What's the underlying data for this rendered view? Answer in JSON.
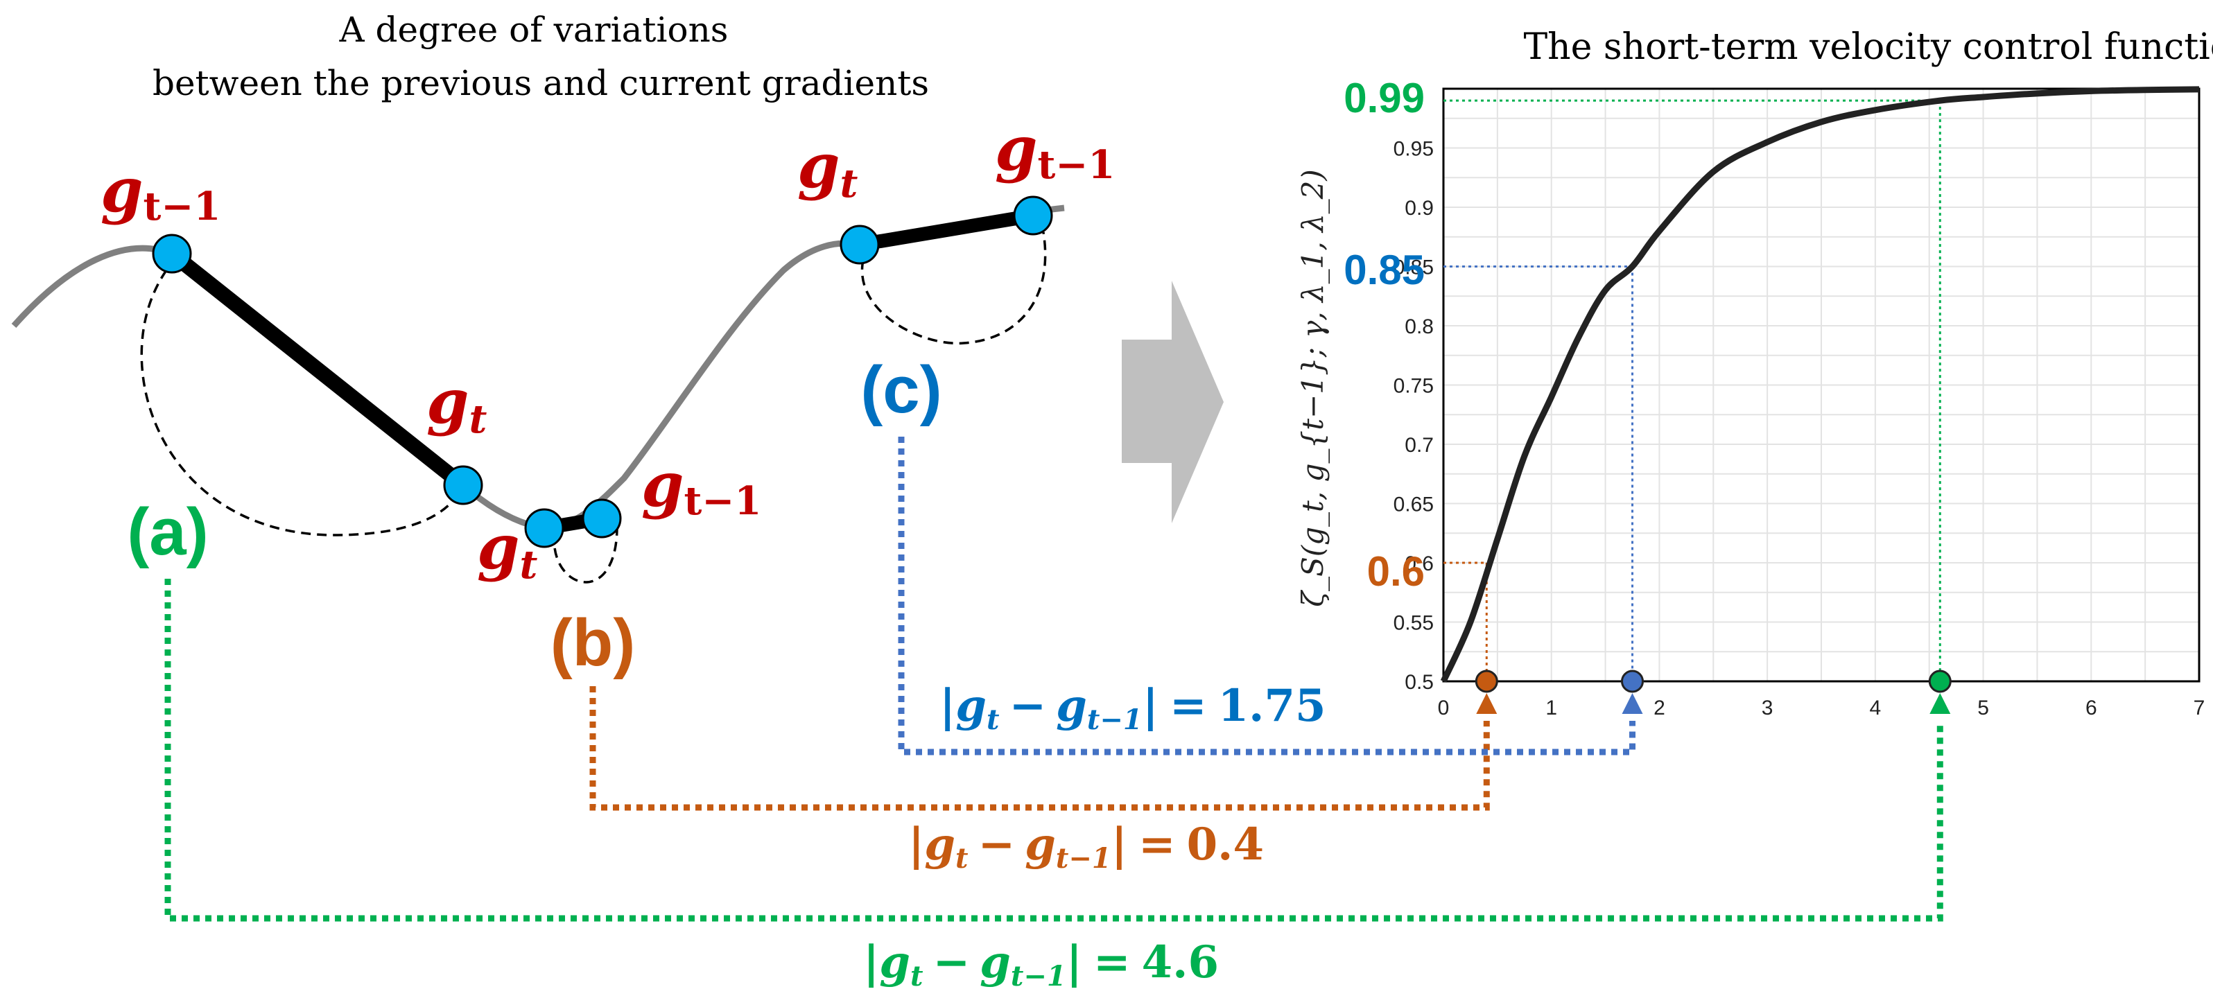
{
  "left_title": {
    "line1": "A degree of variations",
    "line2": "between the previous and current gradients"
  },
  "right_title": "The short-term velocity control function",
  "cases": {
    "a": {
      "label": "(a)",
      "equation": "|g_t − g_{t−1}| = 4.6",
      "value": 4.6
    },
    "b": {
      "label": "(b)",
      "equation": "|g_t − g_{t−1}| = 0.4",
      "value": 0.4
    },
    "c": {
      "label": "(c)",
      "equation": "|g_t − g_{t−1}| = 1.75",
      "value": 1.75
    }
  },
  "point_labels": {
    "g_t": "g",
    "t_sub": "t",
    "t_minus_1_sub": "t−1"
  },
  "equation_parts": {
    "bar": "|",
    "g": "g",
    "t": "t",
    "minus": "−",
    "t_minus_1": "t−1",
    "equals": "=",
    "v_a": "4.6",
    "v_b": "0.4",
    "v_c": "1.75"
  },
  "highlighted_levels": {
    "a": "0.99",
    "b": "0.6",
    "c": "0.85"
  },
  "colors": {
    "a": "#00b050",
    "b": "#c55a11",
    "c": "#0070c0",
    "c_dash": "#4472c4",
    "point_fill": "#00b0f0",
    "label_red": "#c00000",
    "curve": "#222222",
    "arrow": "#bfbfbf"
  },
  "chart_data": {
    "type": "line",
    "title": "The short-term velocity control function",
    "xlabel": "",
    "ylabel": "ζ_S(g_t, g_{t−1}; γ, λ_1, λ_2)",
    "xlim": [
      0,
      7
    ],
    "ylim": [
      0.5,
      1.0
    ],
    "x_ticks": [
      "0",
      "1",
      "2",
      "3",
      "4",
      "5",
      "6",
      "7"
    ],
    "y_ticks": [
      "0.5",
      "0.55",
      "0.6",
      "0.65",
      "0.7",
      "0.75",
      "0.8",
      "0.85",
      "0.9",
      "0.95"
    ],
    "grid": true,
    "series": [
      {
        "x": [
          0,
          0.25,
          0.5,
          0.75,
          1.0,
          1.25,
          1.5,
          1.75,
          2.0,
          2.5,
          3.0,
          3.5,
          4.0,
          4.6,
          5.0,
          5.5,
          6.0,
          6.5,
          7.0
        ],
        "y": [
          0.5,
          0.55,
          0.62,
          0.69,
          0.74,
          0.79,
          0.83,
          0.85,
          0.88,
          0.93,
          0.955,
          0.972,
          0.982,
          0.99,
          0.993,
          0.996,
          0.998,
          0.999,
          0.9995
        ]
      }
    ],
    "markers": [
      {
        "x": 0.4,
        "y": 0.6,
        "color": "#c55a11"
      },
      {
        "x": 1.75,
        "y": 0.85,
        "color": "#4472c4"
      },
      {
        "x": 4.6,
        "y": 0.99,
        "color": "#00b050"
      }
    ]
  }
}
